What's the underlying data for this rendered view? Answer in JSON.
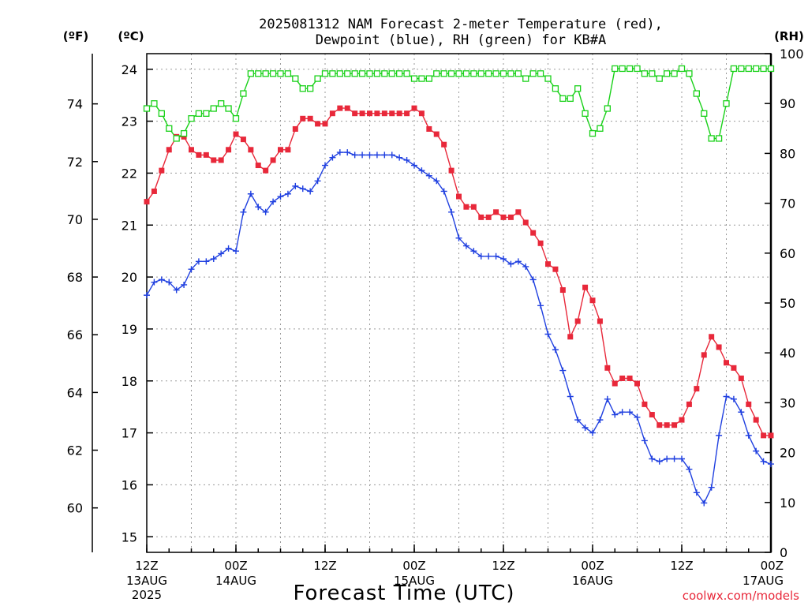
{
  "chart_data": {
    "type": "line",
    "title": "2025081312 NAM Forecast 2-meter Temperature (red),",
    "subtitle": "Dewpoint (blue), RH (green) for KB#A",
    "xlabel": "Forecast Time (UTC)",
    "unit_f": "(ºF)",
    "unit_c": "(ºC)",
    "unit_rh": "(RH)",
    "credit": "coolwx.com/models",
    "x_hours": {
      "start": 0,
      "end": 84,
      "step": 1
    },
    "x_ticks": [
      {
        "h": 0,
        "line1": "12Z",
        "line2": "13AUG",
        "line3": "2025"
      },
      {
        "h": 12,
        "line1": "00Z",
        "line2": "14AUG",
        "line3": ""
      },
      {
        "h": 24,
        "line1": "12Z",
        "line2": "",
        "line3": ""
      },
      {
        "h": 36,
        "line1": "00Z",
        "line2": "15AUG",
        "line3": ""
      },
      {
        "h": 48,
        "line1": "12Z",
        "line2": "",
        "line3": ""
      },
      {
        "h": 60,
        "line1": "00Z",
        "line2": "16AUG",
        "line3": ""
      },
      {
        "h": 72,
        "line1": "12Z",
        "line2": "",
        "line3": ""
      },
      {
        "h": 84,
        "line1": "00Z",
        "line2": "17AUG",
        "line3": ""
      }
    ],
    "y_celsius": {
      "min": 14.7,
      "max": 24.3,
      "ticks": [
        "15",
        "16",
        "17",
        "18",
        "19",
        "20",
        "21",
        "22",
        "23",
        "24"
      ]
    },
    "y_fahrenheit": {
      "ticks": [
        "60",
        "62",
        "64",
        "66",
        "68",
        "70",
        "72",
        "74"
      ]
    },
    "y_rh": {
      "min": 0,
      "max": 100,
      "ticks": [
        "0",
        "10",
        "20",
        "30",
        "40",
        "50",
        "60",
        "70",
        "80",
        "90",
        "100"
      ]
    },
    "grid": true,
    "series": [
      {
        "name": "Temperature",
        "unit": "C",
        "color": "#e8283a",
        "marker": "filled-square",
        "values": [
          21.45,
          21.65,
          22.05,
          22.45,
          22.7,
          22.7,
          22.45,
          22.35,
          22.35,
          22.25,
          22.25,
          22.45,
          22.75,
          22.65,
          22.45,
          22.15,
          22.05,
          22.25,
          22.45,
          22.45,
          22.85,
          23.05,
          23.05,
          22.95,
          22.95,
          23.15,
          23.25,
          23.25,
          23.15,
          23.15,
          23.15,
          23.15,
          23.15,
          23.15,
          23.15,
          23.15,
          23.25,
          23.15,
          22.85,
          22.75,
          22.55,
          22.05,
          21.55,
          21.35,
          21.35,
          21.15,
          21.15,
          21.25,
          21.15,
          21.15,
          21.25,
          21.05,
          20.85,
          20.65,
          20.25,
          20.15,
          19.75,
          18.85,
          19.15,
          19.8,
          19.55,
          19.15,
          18.25,
          17.95,
          18.05,
          18.05,
          17.95,
          17.55,
          17.35,
          17.15,
          17.15,
          17.15,
          17.25,
          17.55,
          17.85,
          18.5,
          18.85,
          18.65,
          18.35,
          18.25,
          18.05,
          17.55,
          17.25,
          16.95,
          16.95
        ]
      },
      {
        "name": "Dewpoint",
        "unit": "C",
        "color": "#2040e0",
        "marker": "plus",
        "values": [
          19.65,
          19.9,
          19.95,
          19.9,
          19.75,
          19.85,
          20.15,
          20.3,
          20.3,
          20.35,
          20.45,
          20.55,
          20.5,
          21.25,
          21.6,
          21.35,
          21.25,
          21.45,
          21.55,
          21.6,
          21.75,
          21.7,
          21.65,
          21.85,
          22.15,
          22.3,
          22.4,
          22.4,
          22.35,
          22.35,
          22.35,
          22.35,
          22.35,
          22.35,
          22.3,
          22.25,
          22.15,
          22.05,
          21.95,
          21.85,
          21.65,
          21.25,
          20.75,
          20.6,
          20.5,
          20.4,
          20.4,
          20.4,
          20.35,
          20.25,
          20.3,
          20.2,
          19.95,
          19.45,
          18.9,
          18.6,
          18.2,
          17.7,
          17.25,
          17.1,
          17.0,
          17.25,
          17.65,
          17.35,
          17.4,
          17.4,
          17.3,
          16.85,
          16.5,
          16.45,
          16.5,
          16.5,
          16.5,
          16.3,
          15.85,
          15.65,
          15.95,
          16.95,
          17.7,
          17.65,
          17.4,
          16.95,
          16.65,
          16.45,
          16.4
        ]
      },
      {
        "name": "RH",
        "unit": "%",
        "color": "#19d119",
        "marker": "open-square",
        "values": [
          89,
          90,
          88,
          85,
          83,
          84,
          87,
          88,
          88,
          89,
          90,
          89,
          87,
          92,
          96,
          96,
          96,
          96,
          96,
          96,
          95,
          93,
          93,
          95,
          96,
          96,
          96,
          96,
          96,
          96,
          96,
          96,
          96,
          96,
          96,
          96,
          95,
          95,
          95,
          96,
          96,
          96,
          96,
          96,
          96,
          96,
          96,
          96,
          96,
          96,
          96,
          95,
          96,
          96,
          95,
          93,
          91,
          91,
          93,
          88,
          84,
          85,
          89,
          97,
          97,
          97,
          97,
          96,
          96,
          95,
          96,
          96,
          97,
          96,
          92,
          88,
          83,
          83,
          90,
          97,
          97,
          97,
          97,
          97,
          97
        ]
      }
    ]
  }
}
